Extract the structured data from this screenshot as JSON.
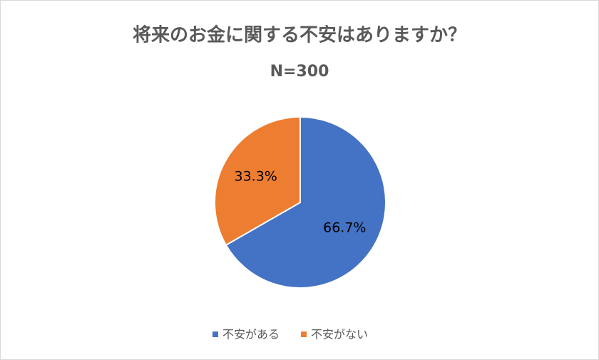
{
  "chart_data": {
    "type": "pie",
    "title": "将来のお金に関する不安はありますか？",
    "subtitle": "N=300",
    "categories": [
      "不安がある",
      "不安がない"
    ],
    "values": [
      66.7,
      33.3
    ],
    "value_labels": [
      "66.7%",
      "33.3%"
    ],
    "colors": [
      "#4472c4",
      "#ed7d31"
    ],
    "legend": "bottom"
  }
}
